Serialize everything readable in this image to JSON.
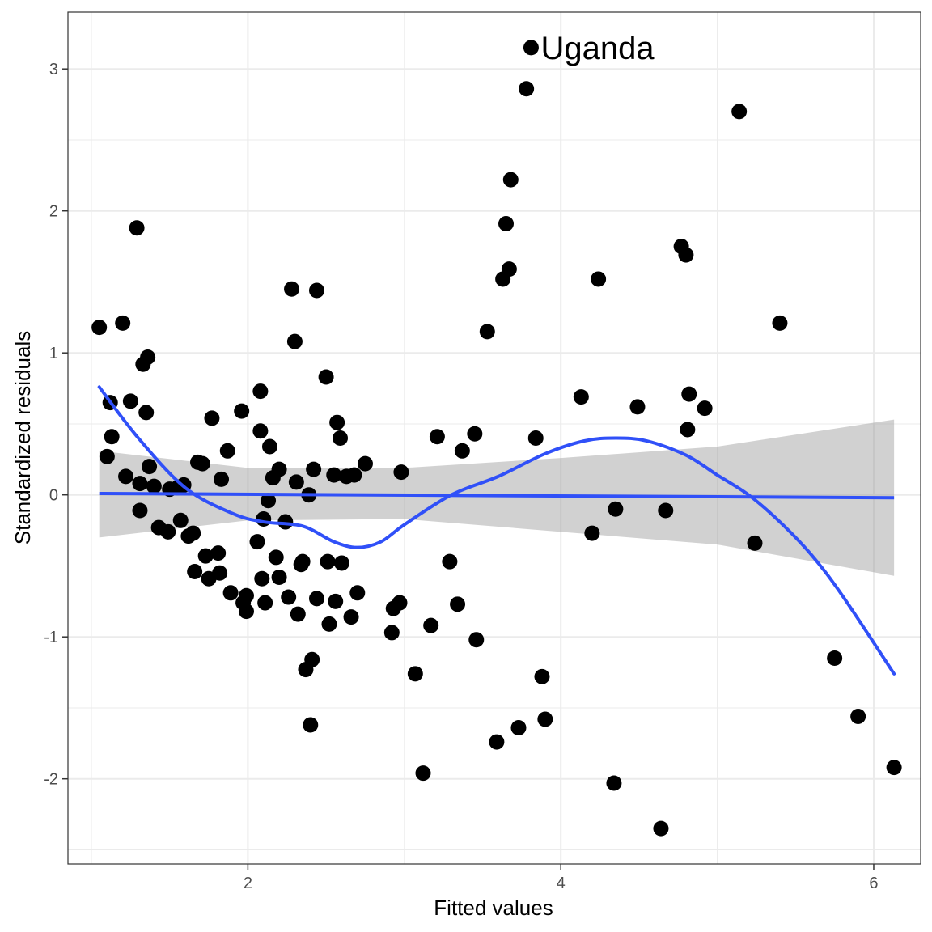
{
  "chart_data": {
    "type": "scatter",
    "xlabel": "Fitted values",
    "ylabel": "Standardized residuals",
    "xlim": [
      0.85,
      6.3
    ],
    "ylim": [
      -2.6,
      3.4
    ],
    "x_ticks": [
      2,
      4,
      6
    ],
    "y_ticks": [
      -2,
      -1,
      0,
      1,
      2,
      3
    ],
    "x_tick_labels": [
      "2",
      "4",
      "6"
    ],
    "y_tick_labels": [
      "-2",
      "-1",
      "0",
      "1",
      "2",
      "3"
    ],
    "grid": true,
    "colors": {
      "points": "#000000",
      "fit_line": "#3050f8",
      "confidence_band": "#999999",
      "grid": "#ebebeb",
      "panel_border": "#333333"
    },
    "annotations": [
      {
        "text": "Uganda",
        "x": 3.81,
        "y": 3.15
      }
    ],
    "points": [
      [
        1.05,
        1.18
      ],
      [
        1.1,
        0.27
      ],
      [
        1.12,
        0.65
      ],
      [
        1.13,
        0.41
      ],
      [
        1.2,
        1.21
      ],
      [
        1.22,
        0.13
      ],
      [
        1.25,
        0.66
      ],
      [
        1.29,
        1.88
      ],
      [
        1.31,
        0.08
      ],
      [
        1.31,
        -0.11
      ],
      [
        1.33,
        0.92
      ],
      [
        1.35,
        0.58
      ],
      [
        1.36,
        0.97
      ],
      [
        1.37,
        0.2
      ],
      [
        1.4,
        0.06
      ],
      [
        1.43,
        -0.23
      ],
      [
        1.49,
        -0.26
      ],
      [
        1.5,
        0.04
      ],
      [
        1.55,
        0.05
      ],
      [
        1.57,
        -0.18
      ],
      [
        1.59,
        0.07
      ],
      [
        1.62,
        -0.29
      ],
      [
        1.65,
        -0.27
      ],
      [
        1.66,
        -0.54
      ],
      [
        1.68,
        0.23
      ],
      [
        1.71,
        0.22
      ],
      [
        1.73,
        -0.43
      ],
      [
        1.75,
        -0.59
      ],
      [
        1.77,
        0.54
      ],
      [
        1.81,
        -0.41
      ],
      [
        1.82,
        -0.55
      ],
      [
        1.83,
        0.11
      ],
      [
        1.87,
        0.31
      ],
      [
        1.89,
        -0.69
      ],
      [
        1.96,
        0.59
      ],
      [
        1.97,
        -0.76
      ],
      [
        1.99,
        -0.71
      ],
      [
        1.99,
        -0.82
      ],
      [
        2.06,
        -0.33
      ],
      [
        2.08,
        0.73
      ],
      [
        2.08,
        0.45
      ],
      [
        2.09,
        -0.59
      ],
      [
        2.1,
        -0.17
      ],
      [
        2.11,
        -0.76
      ],
      [
        2.13,
        -0.04
      ],
      [
        2.14,
        0.34
      ],
      [
        2.16,
        0.12
      ],
      [
        2.18,
        -0.44
      ],
      [
        2.2,
        0.18
      ],
      [
        2.2,
        -0.58
      ],
      [
        2.24,
        -0.19
      ],
      [
        2.26,
        -0.72
      ],
      [
        2.28,
        1.45
      ],
      [
        2.3,
        1.08
      ],
      [
        2.31,
        0.09
      ],
      [
        2.32,
        -0.84
      ],
      [
        2.34,
        -0.49
      ],
      [
        2.35,
        -0.47
      ],
      [
        2.37,
        -1.23
      ],
      [
        2.39,
        0.0
      ],
      [
        2.4,
        -1.62
      ],
      [
        2.41,
        -1.16
      ],
      [
        2.42,
        0.18
      ],
      [
        2.44,
        1.44
      ],
      [
        2.44,
        -0.73
      ],
      [
        2.5,
        0.83
      ],
      [
        2.51,
        -0.47
      ],
      [
        2.52,
        -0.91
      ],
      [
        2.55,
        0.14
      ],
      [
        2.56,
        -0.75
      ],
      [
        2.57,
        0.51
      ],
      [
        2.59,
        0.4
      ],
      [
        2.6,
        -0.48
      ],
      [
        2.63,
        0.13
      ],
      [
        2.66,
        -0.86
      ],
      [
        2.68,
        0.14
      ],
      [
        2.7,
        -0.69
      ],
      [
        2.75,
        0.22
      ],
      [
        2.92,
        -0.97
      ],
      [
        2.93,
        -0.8
      ],
      [
        2.97,
        -0.76
      ],
      [
        2.98,
        0.16
      ],
      [
        3.07,
        -1.26
      ],
      [
        3.12,
        -1.96
      ],
      [
        3.17,
        -0.92
      ],
      [
        3.21,
        0.41
      ],
      [
        3.29,
        -0.47
      ],
      [
        3.34,
        -0.77
      ],
      [
        3.37,
        0.31
      ],
      [
        3.45,
        0.43
      ],
      [
        3.46,
        -1.02
      ],
      [
        3.53,
        1.15
      ],
      [
        3.59,
        -1.74
      ],
      [
        3.63,
        1.52
      ],
      [
        3.65,
        1.91
      ],
      [
        3.67,
        1.59
      ],
      [
        3.68,
        2.22
      ],
      [
        3.73,
        -1.64
      ],
      [
        3.78,
        2.86
      ],
      [
        3.81,
        3.15
      ],
      [
        3.84,
        0.4
      ],
      [
        3.88,
        -1.28
      ],
      [
        3.9,
        -1.58
      ],
      [
        4.13,
        0.69
      ],
      [
        4.2,
        -0.27
      ],
      [
        4.24,
        1.52
      ],
      [
        4.34,
        -2.03
      ],
      [
        4.35,
        -0.1
      ],
      [
        4.49,
        0.62
      ],
      [
        4.64,
        -2.35
      ],
      [
        4.67,
        -0.11
      ],
      [
        4.77,
        1.75
      ],
      [
        4.8,
        1.69
      ],
      [
        4.81,
        0.46
      ],
      [
        4.82,
        0.71
      ],
      [
        4.92,
        0.61
      ],
      [
        5.14,
        2.7
      ],
      [
        5.24,
        -0.34
      ],
      [
        5.4,
        1.21
      ],
      [
        5.75,
        -1.15
      ],
      [
        5.9,
        -1.56
      ],
      [
        6.13,
        -1.92
      ]
    ],
    "smooth_fit": [
      [
        1.05,
        0.76
      ],
      [
        1.3,
        0.4
      ],
      [
        1.6,
        0.05
      ],
      [
        1.9,
        -0.13
      ],
      [
        2.1,
        -0.19
      ],
      [
        2.35,
        -0.22
      ],
      [
        2.55,
        -0.33
      ],
      [
        2.7,
        -0.37
      ],
      [
        2.85,
        -0.33
      ],
      [
        3.0,
        -0.21
      ],
      [
        3.3,
        0.0
      ],
      [
        3.6,
        0.13
      ],
      [
        3.9,
        0.29
      ],
      [
        4.15,
        0.38
      ],
      [
        4.35,
        0.4
      ],
      [
        4.55,
        0.38
      ],
      [
        4.8,
        0.28
      ],
      [
        5.0,
        0.14
      ],
      [
        5.2,
        0.0
      ],
      [
        5.4,
        -0.19
      ],
      [
        5.6,
        -0.42
      ],
      [
        5.8,
        -0.71
      ],
      [
        6.13,
        -1.26
      ]
    ],
    "linear_fit": {
      "x": [
        1.05,
        6.13
      ],
      "y": [
        0.01,
        -0.02
      ]
    },
    "confidence_band": {
      "x": [
        1.05,
        2.0,
        3.0,
        4.0,
        5.0,
        6.13
      ],
      "upper": [
        0.31,
        0.19,
        0.19,
        0.26,
        0.34,
        0.53
      ],
      "lower": [
        -0.3,
        -0.18,
        -0.17,
        -0.26,
        -0.35,
        -0.57
      ]
    }
  }
}
